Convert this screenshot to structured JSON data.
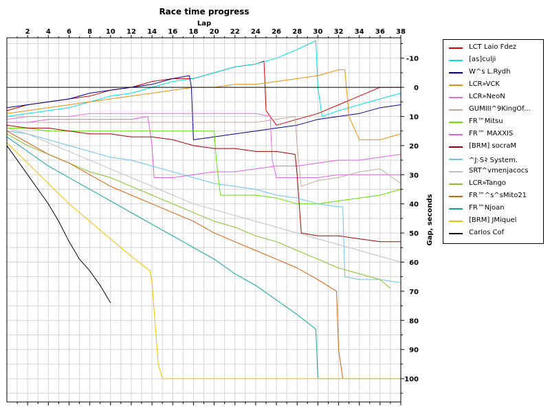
{
  "chart_data": {
    "type": "line",
    "title": "Race time progress",
    "xlabel": "Lap",
    "ylabel": "Gap, seconds",
    "x_ticks": [
      "2",
      "4",
      "6",
      "8",
      "10",
      "12",
      "14",
      "16",
      "18",
      "20",
      "22",
      "24",
      "26",
      "28",
      "30",
      "32",
      "34",
      "36",
      "38"
    ],
    "y_ticks": [
      "-10",
      "0",
      "10",
      "20",
      "30",
      "40",
      "50",
      "60",
      "70",
      "80",
      "90",
      "100"
    ],
    "xlim": [
      0,
      38
    ],
    "ylim": [
      -17,
      108
    ],
    "y_inverted": true,
    "x_axis_position": "top",
    "y_axis_position": "right",
    "grid": true,
    "legend_position": "right",
    "series": [
      {
        "name": "LCT Laio Fdez",
        "color": "#cc0000",
        "x": [
          0,
          2,
          4,
          6,
          8,
          10,
          12,
          14,
          16,
          18,
          20,
          22,
          24,
          24.8,
          25,
          26,
          28,
          30,
          32,
          34,
          36,
          38
        ],
        "y": [
          8,
          6,
          5,
          4,
          3,
          1,
          0,
          -2,
          -3,
          -3,
          -5,
          -7,
          -8,
          -9,
          8,
          13,
          11,
          9,
          6,
          3,
          0,
          0
        ]
      },
      {
        "name": "[as]culji",
        "color": "#00e0e0",
        "x": [
          0,
          2,
          4,
          6,
          8,
          10,
          12,
          14,
          16,
          18,
          20,
          22,
          24,
          26,
          28,
          29.8,
          30,
          30.4,
          32,
          34,
          36,
          38
        ],
        "y": [
          10,
          9,
          8,
          7,
          5,
          3,
          2,
          0,
          -2,
          -3,
          -5,
          -7,
          -8,
          -10,
          -13,
          -16,
          0,
          10,
          8,
          6,
          4,
          2
        ]
      },
      {
        "name": "W^s L.Rydh",
        "color": "#00008b",
        "x": [
          0,
          2,
          4,
          6,
          8,
          10,
          12,
          14,
          16,
          17.6,
          17.8,
          18,
          20,
          22,
          24,
          26,
          28,
          30,
          32,
          34,
          36,
          38
        ],
        "y": [
          7,
          6,
          5,
          4,
          2,
          1,
          0,
          -1,
          -3,
          -4,
          0,
          18,
          17,
          16,
          15,
          14,
          13,
          11,
          10,
          9,
          7,
          6
        ]
      },
      {
        "name": "LCR»VCK",
        "color": "#e8900a",
        "x": [
          0,
          2,
          4,
          6,
          8,
          10,
          12,
          14,
          16,
          18,
          20,
          22,
          24,
          26,
          28,
          30,
          32,
          32.6,
          33,
          34,
          36,
          38
        ],
        "y": [
          9,
          8,
          7,
          6,
          5,
          4,
          3,
          2,
          1,
          0,
          0,
          -1,
          -1,
          -2,
          -3,
          -4,
          -6,
          -6,
          10,
          18,
          18,
          16
        ]
      },
      {
        "name": "LCR»NeoN",
        "color": "#e070e0",
        "x": [
          0,
          2,
          4,
          6,
          8,
          10,
          12,
          14,
          16,
          18,
          20,
          22,
          24,
          25.4,
          25.6,
          26,
          28,
          30,
          32,
          34,
          36,
          38
        ],
        "y": [
          11,
          10,
          10,
          10,
          9,
          9,
          9,
          9,
          9,
          9,
          9,
          9,
          9,
          10,
          25,
          31,
          31,
          31,
          30,
          30,
          30,
          30
        ]
      },
      {
        "name": "GUMIII^9KingOf...",
        "color": "#c8a898",
        "x": [
          0,
          2,
          4,
          6,
          8,
          10,
          12,
          14,
          16,
          18,
          20,
          22,
          24,
          26,
          27.8,
          28,
          28.4,
          30,
          32,
          34,
          36,
          38
        ],
        "y": [
          12,
          12,
          12,
          12,
          12,
          12,
          12,
          12,
          12,
          12,
          12,
          12,
          12,
          11,
          10,
          20,
          34,
          32,
          31,
          29,
          28,
          33
        ]
      },
      {
        "name": "FR™Mitsu",
        "color": "#66dd00",
        "x": [
          0,
          2,
          4,
          6,
          8,
          10,
          12,
          14,
          16,
          18,
          20,
          20.2,
          20.6,
          22,
          24,
          26,
          28,
          30,
          32,
          34,
          36,
          38
        ],
        "y": [
          14,
          14,
          15,
          15,
          15,
          15,
          15,
          15,
          15,
          15,
          15,
          25,
          37,
          37,
          37,
          38,
          40,
          40,
          39,
          38,
          37,
          35
        ]
      },
      {
        "name": "FR™ MAXXIS",
        "color": "#e060e0",
        "x": [
          0,
          2,
          4,
          6,
          8,
          10,
          12,
          13.6,
          14,
          14.2,
          16,
          18,
          20,
          22,
          24,
          26,
          28,
          30,
          32,
          34,
          36,
          38
        ],
        "y": [
          12,
          12,
          11,
          11,
          11,
          11,
          11,
          10,
          20,
          31,
          31,
          30,
          29,
          29,
          28,
          27,
          27,
          26,
          25,
          25,
          24,
          23
        ]
      },
      {
        "name": "[BRM] socraM",
        "color": "#a00000",
        "x": [
          0,
          2,
          4,
          6,
          8,
          10,
          12,
          14,
          16,
          18,
          20,
          22,
          24,
          26,
          27.8,
          28,
          28.4,
          30,
          32,
          34,
          36,
          38
        ],
        "y": [
          13,
          14,
          14,
          15,
          16,
          16,
          17,
          17,
          18,
          20,
          21,
          21,
          22,
          22,
          23,
          30,
          50,
          51,
          51,
          52,
          53,
          53
        ]
      },
      {
        "name": "^J჻S२ System.",
        "color": "#70c0e8",
        "x": [
          0,
          2,
          4,
          6,
          8,
          10,
          12,
          14,
          16,
          18,
          20,
          22,
          24,
          26,
          28,
          30,
          32,
          32.4,
          32.6,
          34,
          36,
          38
        ],
        "y": [
          15,
          16,
          18,
          20,
          22,
          24,
          25,
          27,
          29,
          31,
          33,
          34,
          35,
          37,
          38,
          40,
          41,
          41,
          65,
          66,
          66,
          67
        ]
      },
      {
        "name": "SRT^vmenjacocs",
        "color": "#c0c0c0",
        "x": [
          0,
          2,
          4,
          6,
          8,
          10,
          12,
          14,
          16,
          18,
          20,
          22,
          24,
          26,
          28,
          30,
          32,
          34,
          36,
          38
        ],
        "y": [
          14,
          16,
          19,
          22,
          25,
          28,
          31,
          34,
          37,
          40,
          42,
          44,
          46,
          48,
          50,
          52,
          54,
          56,
          58,
          60
        ]
      },
      {
        "name": "LCR»Tango",
        "color": "#88c030",
        "x": [
          0,
          2,
          4,
          6,
          8,
          10,
          12,
          14,
          16,
          18,
          20,
          22,
          24,
          26,
          28,
          30,
          32,
          34,
          36,
          37
        ],
        "y": [
          16,
          20,
          23,
          26,
          29,
          31,
          34,
          37,
          40,
          43,
          46,
          48,
          51,
          53,
          56,
          59,
          62,
          64,
          66,
          69
        ]
      },
      {
        "name": "FR™^s^sMito21",
        "color": "#d06010",
        "x": [
          0,
          2,
          4,
          6,
          8,
          10,
          12,
          14,
          16,
          18,
          20,
          22,
          24,
          26,
          28,
          30,
          31.8,
          32,
          32.4
        ],
        "y": [
          15,
          19,
          23,
          26,
          30,
          34,
          37,
          40,
          43,
          46,
          50,
          53,
          56,
          59,
          62,
          66,
          70,
          90,
          100
        ]
      },
      {
        "name": "FR™Njoan",
        "color": "#10a0a0",
        "x": [
          0,
          2,
          4,
          6,
          8,
          10,
          12,
          14,
          16,
          18,
          20,
          22,
          24,
          26,
          28,
          29.8,
          30,
          32,
          34,
          36,
          38
        ],
        "y": [
          17,
          22,
          27,
          31,
          35,
          39,
          43,
          47,
          51,
          55,
          59,
          64,
          68,
          73,
          78,
          83,
          100,
          100,
          100,
          100,
          100
        ]
      },
      {
        "name": "[BRM] JMiquel",
        "color": "#f0c000",
        "x": [
          0,
          2,
          4,
          6,
          8,
          10,
          12,
          13.8,
          14,
          14.6,
          15,
          16,
          18,
          20,
          22,
          24,
          26,
          28,
          30,
          32,
          34,
          36,
          38
        ],
        "y": [
          19,
          26,
          33,
          40,
          46,
          52,
          58,
          63,
          67,
          95,
          100,
          100,
          100,
          100,
          100,
          100,
          100,
          100,
          100,
          100,
          100,
          100,
          100
        ]
      },
      {
        "name": "Carlos Cof",
        "color": "#000000",
        "x": [
          0,
          1,
          2,
          3,
          4,
          5,
          6,
          7,
          8,
          9,
          10
        ],
        "y": [
          20,
          25,
          30,
          35,
          40,
          46,
          53,
          59,
          63,
          68,
          74
        ]
      }
    ]
  }
}
